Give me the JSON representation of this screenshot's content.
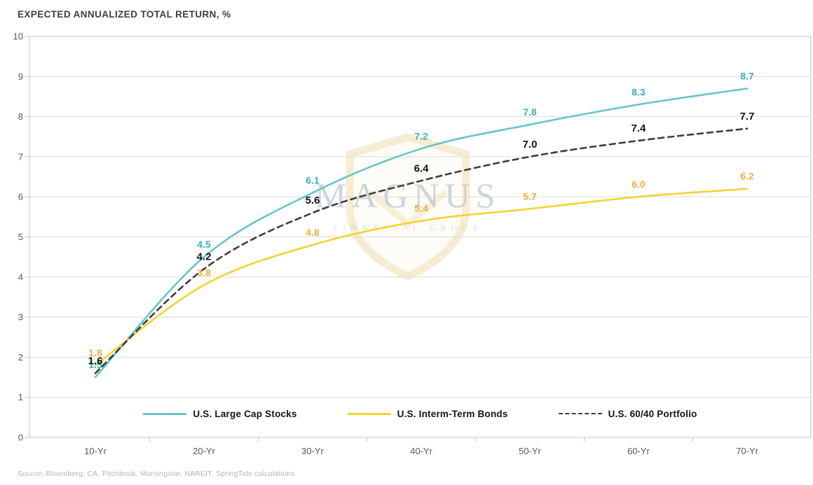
{
  "title": "EXPECTED ANNUALIZED TOTAL RETURN, %",
  "source": "Source: Bloomberg, CA, Pitchbook, Morningstar, NAREIT, SpringTide calculations",
  "watermark": {
    "name": "MAGNUS",
    "subtext": "FINANCIAL GROUP"
  },
  "colors": {
    "grid": "#dbdbdb",
    "border": "#c4c4c4",
    "tick_text": "#585858",
    "title_text": "#3e3e3e",
    "source_text": "#b4b4b4"
  },
  "chart_data": {
    "type": "line",
    "title": "EXPECTED ANNUALIZED TOTAL RETURN, %",
    "categories": [
      "10-Yr",
      "20-Yr",
      "30-Yr",
      "40-Yr",
      "50-Yr",
      "60-Yr",
      "70-Yr"
    ],
    "xlabel": "",
    "ylabel": "",
    "ylim": [
      0,
      10
    ],
    "yticks": [
      "0",
      "1",
      "2",
      "3",
      "4",
      "5",
      "6",
      "7",
      "8",
      "9",
      "10"
    ],
    "grid": true,
    "legend_position": "bottom-inside",
    "series": [
      {
        "name": "U.S. Large Cap Stocks",
        "style": "solid",
        "color": "#68c5c8",
        "label_color": "#3bafb8",
        "values": [
          1.5,
          4.5,
          6.1,
          7.2,
          7.8,
          8.3,
          8.7
        ],
        "labels": [
          "1.5",
          "4.5",
          "6.1",
          "7.2",
          "7.8",
          "8.3",
          "8.7"
        ]
      },
      {
        "name": "U.S. Interm-Term Bonds",
        "style": "solid",
        "color": "#f4d32d",
        "label_color": "#efae3b",
        "values": [
          1.8,
          3.8,
          4.8,
          5.4,
          5.7,
          6.0,
          6.2
        ],
        "labels": [
          "1.8",
          "3.8",
          "4.8",
          "5.4",
          "5.7",
          "6.0",
          "6.2"
        ]
      },
      {
        "name": "U.S. 60/40 Portfolio",
        "style": "dashed",
        "color": "#3e3e3e",
        "label_color": "#141414",
        "values": [
          1.6,
          4.2,
          5.6,
          6.4,
          7.0,
          7.4,
          7.7
        ],
        "labels": [
          "1.6",
          "4.2",
          "5.6",
          "6.4",
          "7.0",
          "7.4",
          "7.7"
        ]
      }
    ]
  }
}
